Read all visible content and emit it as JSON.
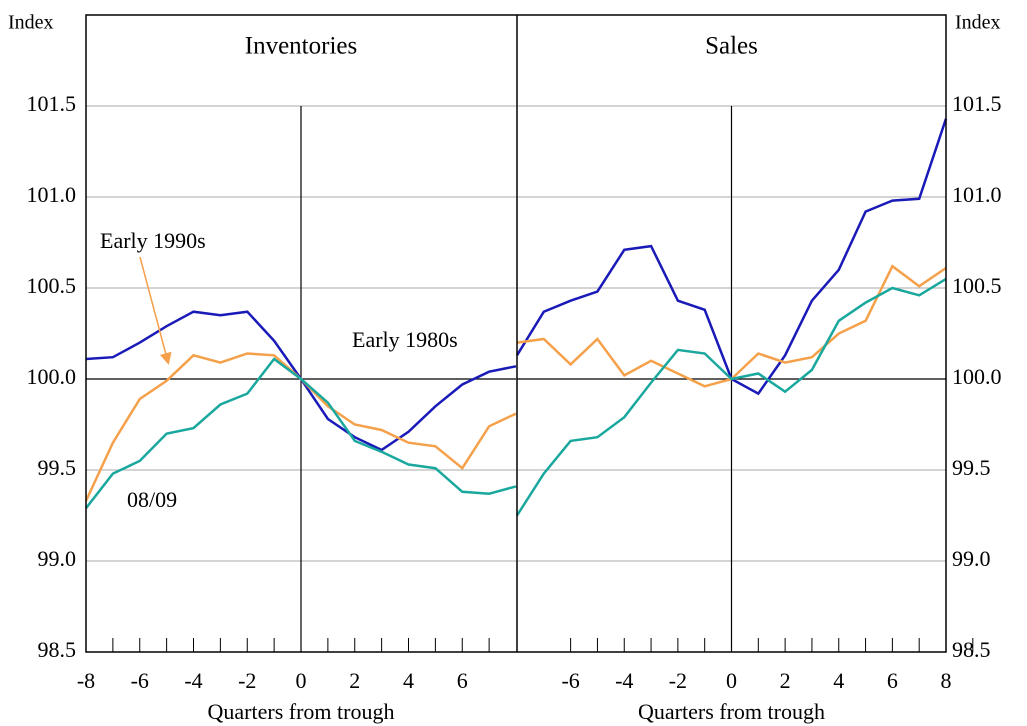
{
  "chart_data": [
    {
      "type": "line",
      "title": "Inventories",
      "xlabel": "Quarters from trough",
      "ylabel": "Index",
      "x": [
        -8,
        -7,
        -6,
        -5,
        -4,
        -3,
        -2,
        -1,
        0,
        1,
        2,
        3,
        4,
        5,
        6,
        7,
        8
      ],
      "xlim": [
        -8,
        8
      ],
      "xticks": [
        -8,
        -6,
        -4,
        -2,
        0,
        2,
        4,
        6
      ],
      "ylim": [
        98.5,
        102.0
      ],
      "yticks": [
        98.5,
        {
          "value": 99.0,
          "label": "99.0"
        },
        99.5,
        {
          "value": 100.0,
          "label": "100.0"
        },
        100.5,
        {
          "value": 101.0,
          "label": "101.0"
        },
        101.5
      ],
      "grid": true,
      "series": [
        {
          "name": "Early 1980s",
          "color": "#1a1ab8",
          "values": [
            100.11,
            100.12,
            100.2,
            100.29,
            100.37,
            100.35,
            100.37,
            100.21,
            100.0,
            99.78,
            99.68,
            99.61,
            99.71,
            99.85,
            99.97,
            100.04,
            100.07
          ]
        },
        {
          "name": "Early 1990s",
          "color": "#f5a04a",
          "values": [
            99.33,
            99.65,
            99.89,
            99.99,
            100.13,
            100.09,
            100.14,
            100.13,
            100.0,
            99.85,
            99.75,
            99.72,
            99.65,
            99.63,
            99.51,
            99.74,
            99.81
          ]
        },
        {
          "name": "08/09",
          "color": "#1aa89e",
          "values": [
            99.29,
            99.48,
            99.55,
            99.7,
            99.73,
            99.86,
            99.92,
            100.11,
            100.0,
            99.87,
            99.66,
            99.6,
            99.53,
            99.51,
            99.38,
            99.37,
            99.41
          ]
        }
      ],
      "annotations": [
        "Early 1990s",
        "Early 1980s",
        "08/09"
      ]
    },
    {
      "type": "line",
      "title": "Sales",
      "xlabel": "Quarters from trough",
      "ylabel": "Index",
      "x": [
        -8,
        -7,
        -6,
        -5,
        -4,
        -3,
        -2,
        -1,
        0,
        1,
        2,
        3,
        4,
        5,
        6,
        7,
        8
      ],
      "xlim": [
        -8,
        8
      ],
      "xticks": [
        -6,
        -4,
        -2,
        0,
        2,
        4,
        6,
        8
      ],
      "ylim": [
        98.5,
        102.0
      ],
      "yticks": [
        98.5,
        {
          "value": 99.0,
          "label": "99.0"
        },
        99.5,
        {
          "value": 100.0,
          "label": "100.0"
        },
        100.5,
        {
          "value": 101.0,
          "label": "101.0"
        },
        101.5
      ],
      "grid": true,
      "series": [
        {
          "name": "Early 1980s",
          "color": "#1a1ab8",
          "values": [
            100.13,
            100.37,
            100.43,
            100.48,
            100.71,
            100.73,
            100.43,
            100.38,
            100.0,
            99.92,
            100.13,
            100.43,
            100.6,
            100.92,
            100.98,
            100.99,
            101.43
          ]
        },
        {
          "name": "Early 1990s",
          "color": "#f5a04a",
          "values": [
            100.2,
            100.22,
            100.08,
            100.22,
            100.02,
            100.1,
            100.03,
            99.96,
            100.0,
            100.14,
            100.09,
            100.12,
            100.25,
            100.32,
            100.62,
            100.51,
            100.61
          ]
        },
        {
          "name": "08/09",
          "color": "#1aa89e",
          "values": [
            99.25,
            99.48,
            99.66,
            99.68,
            99.79,
            99.98,
            100.16,
            100.14,
            100.0,
            100.03,
            99.93,
            100.05,
            100.32,
            100.42,
            100.5,
            100.46,
            100.55
          ]
        }
      ]
    }
  ]
}
